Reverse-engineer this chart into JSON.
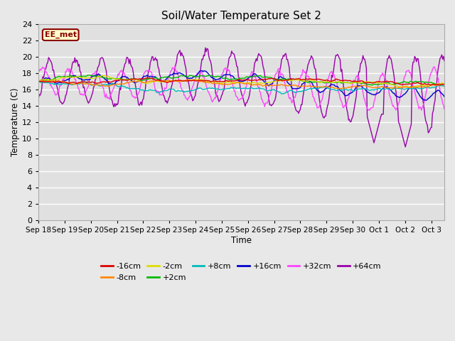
{
  "title": "Soil/Water Temperature Set 2",
  "xlabel": "Time",
  "ylabel": "Temperature (C)",
  "ylim": [
    0,
    24
  ],
  "yticks": [
    0,
    2,
    4,
    6,
    8,
    10,
    12,
    14,
    16,
    18,
    20,
    22,
    24
  ],
  "background_color": "#e8e8e8",
  "plot_bg_color": "#e0e0e0",
  "grid_color": "#ffffff",
  "annotation_text": "EE_met",
  "annotation_box_color": "#ffffcc",
  "annotation_border_color": "#8b0000",
  "series_colors": {
    "-16cm": "#dd0000",
    "-8cm": "#ff8800",
    "-2cm": "#dddd00",
    "+2cm": "#00bb00",
    "+8cm": "#00bbbb",
    "+16cm": "#0000cc",
    "+32cm": "#ff44ff",
    "+64cm": "#9900aa"
  },
  "x_tick_labels": [
    "Sep 18",
    "Sep 19",
    "Sep 20",
    "Sep 21",
    "Sep 22",
    "Sep 23",
    "Sep 24",
    "Sep 25",
    "Sep 26",
    "Sep 27",
    "Sep 28",
    "Sep 29",
    "Sep 30",
    "Oct 1",
    "Oct 2",
    "Oct 3"
  ],
  "x_tick_positions": [
    0,
    1,
    2,
    3,
    4,
    5,
    6,
    7,
    8,
    9,
    10,
    11,
    12,
    13,
    14,
    15
  ]
}
